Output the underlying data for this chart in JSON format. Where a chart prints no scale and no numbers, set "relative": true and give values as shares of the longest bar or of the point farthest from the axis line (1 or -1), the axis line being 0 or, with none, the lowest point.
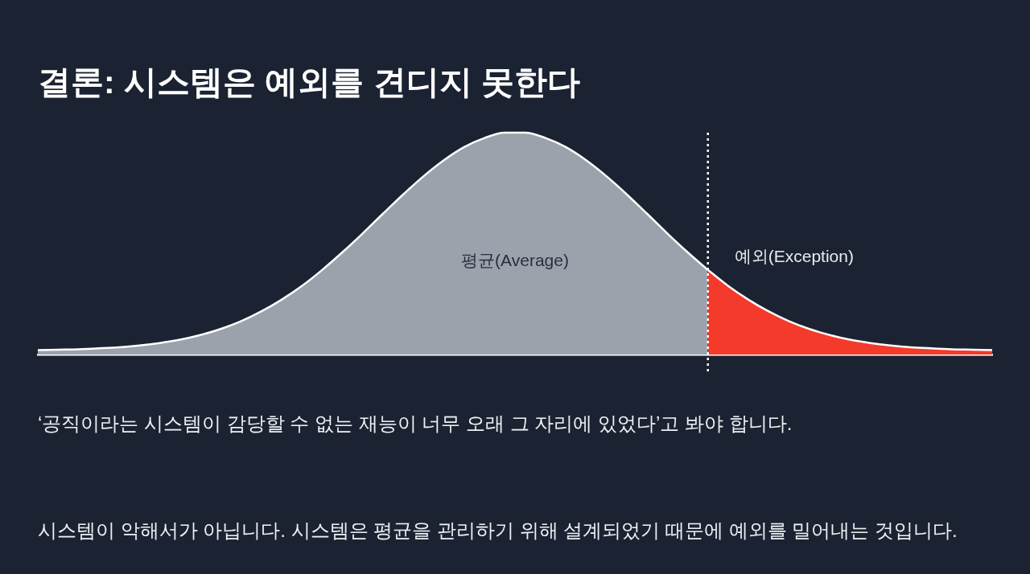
{
  "chart_data": {
    "type": "area",
    "title": "결론: 시스템은 예외를 견디지 못한다",
    "categories": [
      null,
      null,
      null,
      null,
      null,
      null,
      null,
      null,
      null,
      null,
      null,
      null,
      null,
      null,
      null,
      null,
      null,
      null,
      null,
      null,
      null,
      null,
      null,
      null,
      null,
      null,
      null,
      null,
      null,
      null,
      null,
      null,
      null,
      null,
      null,
      null,
      null,
      null,
      null,
      null,
      null,
      null,
      null,
      null,
      null,
      null,
      null,
      null
    ],
    "relative": true,
    "series": [
      {
        "name": "평균(Average)",
        "color": "#9ba2ac",
        "values": [
          0.02,
          0.022,
          0.024,
          0.028,
          0.033,
          0.041,
          0.052,
          0.067,
          0.088,
          0.115,
          0.15,
          0.194,
          0.247,
          0.309,
          0.381,
          0.461,
          0.546,
          0.635,
          0.722,
          0.804,
          0.876,
          0.935,
          0.976,
          1,
          1,
          0.976,
          0.935,
          0.876,
          0.804,
          0.722,
          0.635,
          0.546,
          0.461,
          0.381,
          null,
          null,
          null,
          null,
          null,
          null,
          null,
          null,
          null,
          null,
          null,
          null,
          null,
          null
        ]
      },
      {
        "name": "예외(Exception)",
        "color": "#f43a2b",
        "values": [
          null,
          null,
          null,
          null,
          null,
          null,
          null,
          null,
          null,
          null,
          null,
          null,
          null,
          null,
          null,
          null,
          null,
          null,
          null,
          null,
          null,
          null,
          null,
          null,
          null,
          null,
          null,
          null,
          null,
          null,
          null,
          null,
          null,
          0.381,
          0.309,
          0.247,
          0.194,
          0.15,
          0.115,
          0.088,
          0.067,
          0.052,
          0.041,
          0.033,
          0.028,
          0.024,
          0.022,
          0.02
        ]
      }
    ],
    "legend": false,
    "tick_labels": false,
    "annotations": [
      "‘공직이라는 시스템이 감당할 수 없는 재능이 너무 오래 그 자리에 있었다’고 봐야 합니다.",
      "시스템이 악해서가 아닙니다. 시스템은 평균을 관리하기 위해 설계되었기 때문에 예외를 밀어내는 것입니다."
    ]
  }
}
